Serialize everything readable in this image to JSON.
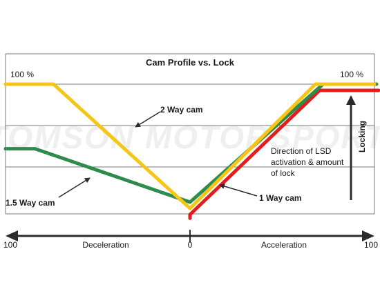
{
  "chart_data": {
    "type": "line",
    "title": "Cam Profile vs. Lock",
    "x_axis": {
      "min": -100,
      "max": 100,
      "tick_labels": [
        {
          "x": -100,
          "label": "100"
        },
        {
          "x": 0,
          "label": "0"
        },
        {
          "x": 100,
          "label": "100"
        }
      ],
      "left_label": "Deceleration",
      "right_label": "Acceleration"
    },
    "y_axis": {
      "min": 0,
      "max": 100,
      "label": "Locking",
      "max_labels": [
        "100 %",
        "100 %"
      ],
      "gridlines": [
        0,
        33.3,
        66.7,
        100
      ]
    },
    "series": [
      {
        "name": "2 Way cam",
        "color": "#f5c518",
        "points": [
          [
            -100,
            100
          ],
          [
            -74,
            100
          ],
          [
            0,
            0
          ],
          [
            68,
            100
          ],
          [
            100,
            100
          ]
        ]
      },
      {
        "name": "1.5 Way cam",
        "color": "#2e8b4e",
        "points": [
          [
            -100,
            48
          ],
          [
            -84,
            48
          ],
          [
            0,
            5
          ],
          [
            71,
            100
          ],
          [
            100,
            100
          ]
        ]
      },
      {
        "name": "1 Way cam",
        "color": "#e31d1d",
        "points": [
          [
            0,
            -8
          ],
          [
            0,
            -5
          ],
          [
            68,
            95
          ],
          [
            100,
            95
          ]
        ]
      }
    ],
    "annotation": [
      "Direction of LSD",
      "activation & amount",
      "of lock"
    ],
    "watermark": "TOMSON MOTORSPORT",
    "grid": true,
    "legend": "inline labels with arrows"
  },
  "colors": {
    "gridline": "#777777",
    "axis": "#2b2b2b",
    "watermark": "#eeeeee"
  }
}
